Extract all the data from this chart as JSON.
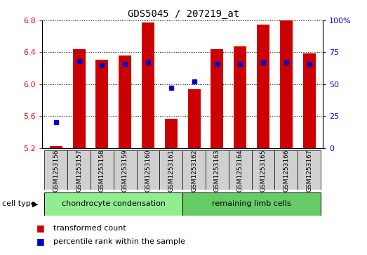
{
  "title": "GDS5045 / 207219_at",
  "samples": [
    "GSM1253156",
    "GSM1253157",
    "GSM1253158",
    "GSM1253159",
    "GSM1253160",
    "GSM1253161",
    "GSM1253162",
    "GSM1253163",
    "GSM1253164",
    "GSM1253165",
    "GSM1253166",
    "GSM1253167"
  ],
  "red_values": [
    5.22,
    6.44,
    6.31,
    6.36,
    6.77,
    5.57,
    5.94,
    6.44,
    6.47,
    6.75,
    6.8,
    6.39
  ],
  "blue_percentiles": [
    20,
    68,
    65,
    66,
    67,
    47,
    52,
    66,
    66,
    67,
    67,
    66
  ],
  "ylim_left": [
    5.2,
    6.8
  ],
  "ylim_right": [
    0,
    100
  ],
  "yticks_left": [
    5.2,
    5.6,
    6.0,
    6.4,
    6.8
  ],
  "yticks_right": [
    0,
    25,
    50,
    75,
    100
  ],
  "bar_color": "#cc0000",
  "dot_color": "#0000cc",
  "cell_type_groups": [
    {
      "label": "chondrocyte condensation",
      "start": 0,
      "end": 5,
      "color": "#90ee90"
    },
    {
      "label": "remaining limb cells",
      "start": 6,
      "end": 11,
      "color": "#66cc66"
    }
  ],
  "cell_type_label": "cell type",
  "legend_items": [
    {
      "label": "transformed count",
      "color": "#cc0000"
    },
    {
      "label": "percentile rank within the sample",
      "color": "#0000cc"
    }
  ]
}
